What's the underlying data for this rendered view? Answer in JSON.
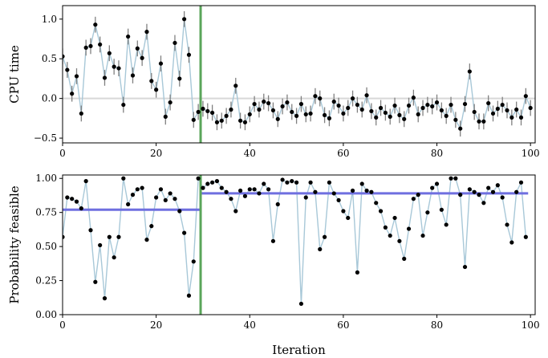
{
  "chart_data": [
    {
      "type": "scatter",
      "ylabel": "CPU time",
      "xlim": [
        0,
        101
      ],
      "ylim": [
        -0.56,
        1.17
      ],
      "xticks": [
        "0",
        "20",
        "40",
        "60",
        "80",
        "100"
      ],
      "yticks": [
        "−0.5",
        "0.0",
        "0.5",
        "1.0"
      ],
      "ytick_values": [
        -0.5,
        0,
        0.5,
        1.0
      ],
      "split_line_x": 29.5,
      "reference_line_y": 0,
      "errorbar_halfwidth": 0.1,
      "colors": {
        "points": "#000000",
        "connector": "#a8c8d8",
        "errorbar": "#808080",
        "split_line": "#5aa55a",
        "reference_line": "#d8d8d8"
      },
      "series": [
        {
          "x": [
            0,
            1,
            2,
            3,
            4,
            5,
            6,
            7,
            8,
            9,
            10,
            11,
            12,
            13,
            14,
            15,
            16,
            17,
            18,
            19,
            20,
            21,
            22,
            23,
            24,
            25,
            26,
            27,
            28,
            29,
            30,
            31,
            32,
            33,
            34,
            35,
            36,
            37,
            38,
            39,
            40,
            41,
            42,
            43,
            44,
            45,
            46,
            47,
            48,
            49,
            50,
            51,
            52,
            53,
            54,
            55,
            56,
            57,
            58,
            59,
            60,
            61,
            62,
            63,
            64,
            65,
            66,
            67,
            68,
            69,
            70,
            71,
            72,
            73,
            74,
            75,
            76,
            77,
            78,
            79,
            80,
            81,
            82,
            83,
            84,
            85,
            86,
            87,
            88,
            89,
            90,
            91,
            92,
            93,
            94,
            95,
            96,
            97,
            98,
            99,
            100
          ],
          "values": [
            0.53,
            0.36,
            0.06,
            0.28,
            -0.19,
            0.64,
            0.66,
            0.93,
            0.68,
            0.26,
            0.57,
            0.4,
            0.38,
            -0.08,
            0.78,
            0.29,
            0.63,
            0.51,
            0.84,
            0.22,
            0.11,
            0.44,
            -0.23,
            -0.05,
            0.7,
            0.25,
            1.0,
            0.55,
            -0.27,
            -0.17,
            -0.13,
            -0.16,
            -0.18,
            -0.3,
            -0.28,
            -0.22,
            -0.14,
            0.16,
            -0.28,
            -0.3,
            -0.2,
            -0.07,
            -0.14,
            -0.04,
            -0.06,
            -0.15,
            -0.26,
            -0.1,
            -0.05,
            -0.17,
            -0.22,
            -0.07,
            -0.2,
            -0.19,
            0.03,
            0.0,
            -0.21,
            -0.25,
            -0.04,
            -0.09,
            -0.19,
            -0.12,
            0.0,
            -0.08,
            -0.14,
            0.04,
            -0.16,
            -0.24,
            -0.12,
            -0.18,
            -0.23,
            -0.09,
            -0.21,
            -0.26,
            -0.09,
            0.01,
            -0.2,
            -0.12,
            -0.08,
            -0.1,
            -0.05,
            -0.15,
            -0.22,
            -0.08,
            -0.27,
            -0.38,
            -0.07,
            0.34,
            -0.17,
            -0.29,
            -0.29,
            -0.06,
            -0.19,
            -0.13,
            -0.08,
            -0.15,
            -0.24,
            -0.14,
            -0.24,
            0.03,
            -0.12
          ]
        }
      ]
    },
    {
      "type": "scatter",
      "xlabel": "Iteration",
      "ylabel": "Probability feasible",
      "xlim": [
        0,
        101
      ],
      "ylim": [
        0,
        1.025
      ],
      "xticks": [
        "0",
        "20",
        "40",
        "60",
        "80",
        "100"
      ],
      "yticks": [
        "0.00",
        "0.25",
        "0.50",
        "0.75",
        "1.00"
      ],
      "ytick_values": [
        0,
        0.25,
        0.5,
        0.75,
        1.0
      ],
      "split_line_x": 29.5,
      "colors": {
        "points": "#000000",
        "connector": "#a8c8d8",
        "mean_line": "#6f6fe0",
        "split_line": "#5aa55a"
      },
      "mean_segments": [
        {
          "x_start": 0,
          "x_end": 29.5,
          "y": 0.77
        },
        {
          "x_start": 29.5,
          "x_end": 99.5,
          "y": 0.89
        }
      ],
      "series": [
        {
          "x": [
            0,
            1,
            2,
            3,
            4,
            5,
            6,
            7,
            8,
            9,
            10,
            11,
            12,
            13,
            14,
            15,
            16,
            17,
            18,
            19,
            20,
            21,
            22,
            23,
            24,
            25,
            26,
            27,
            28,
            29,
            30,
            31,
            32,
            33,
            34,
            35,
            36,
            37,
            38,
            39,
            40,
            41,
            42,
            43,
            44,
            45,
            46,
            47,
            48,
            49,
            50,
            51,
            52,
            53,
            54,
            55,
            56,
            57,
            58,
            59,
            60,
            61,
            62,
            63,
            64,
            65,
            66,
            67,
            68,
            69,
            70,
            71,
            72,
            73,
            74,
            75,
            76,
            77,
            78,
            79,
            80,
            81,
            82,
            83,
            84,
            85,
            86,
            87,
            88,
            89,
            90,
            91,
            92,
            93,
            94,
            95,
            96,
            97,
            98,
            99
          ],
          "values": [
            0.57,
            0.86,
            0.85,
            0.83,
            0.78,
            0.98,
            0.62,
            0.24,
            0.51,
            0.12,
            0.57,
            0.42,
            0.57,
            1.0,
            0.81,
            0.88,
            0.92,
            0.93,
            0.55,
            0.65,
            0.86,
            0.92,
            0.84,
            0.89,
            0.85,
            0.76,
            0.6,
            0.14,
            0.39,
            1.0,
            0.93,
            0.96,
            0.97,
            0.98,
            0.93,
            0.9,
            0.85,
            0.76,
            0.91,
            0.87,
            0.92,
            0.92,
            0.89,
            0.96,
            0.92,
            0.54,
            0.81,
            0.99,
            0.97,
            0.98,
            0.97,
            0.08,
            0.86,
            0.97,
            0.9,
            0.48,
            0.57,
            0.97,
            0.89,
            0.84,
            0.76,
            0.71,
            0.91,
            0.31,
            0.96,
            0.91,
            0.9,
            0.82,
            0.76,
            0.64,
            0.58,
            0.71,
            0.54,
            0.41,
            0.63,
            0.85,
            0.88,
            0.58,
            0.75,
            0.93,
            0.96,
            0.77,
            0.66,
            1.0,
            1.0,
            0.88,
            0.35,
            0.92,
            0.9,
            0.88,
            0.82,
            0.93,
            0.9,
            0.95,
            0.86,
            0.66,
            0.53,
            0.9,
            0.97,
            0.57
          ]
        }
      ]
    }
  ]
}
